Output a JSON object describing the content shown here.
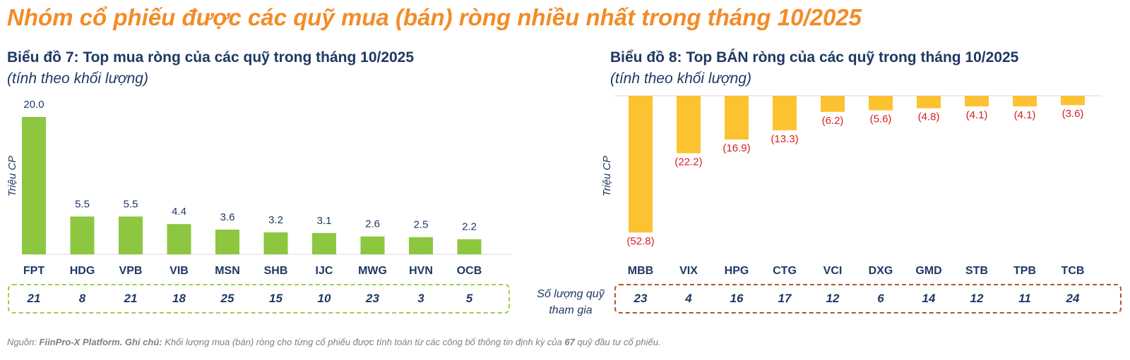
{
  "main_title": "Nhóm cổ phiếu được các quỹ mua (bán) ròng nhiều nhất trong tháng 10/2025",
  "charts": [
    {
      "title": "Biểu đồ 7: Top mua ròng của các quỹ trong tháng 10/2025",
      "subtitle_prefix": "(tính theo",
      "subtitle_em": "khối lượng)",
      "ylabel": "Triệu CP",
      "bar_color": "#8dc63f",
      "label_color": "#1f3864",
      "box_border_color": "#9bd14a",
      "counts": [
        "21",
        "8",
        "21",
        "18",
        "25",
        "15",
        "10",
        "23",
        "3",
        "5"
      ]
    },
    {
      "title": "Biểu đồ 8: Top BÁN ròng của các quỹ trong tháng 10/2025",
      "subtitle_prefix": "(tính theo",
      "subtitle_em": "khối lượng)",
      "ylabel": "Triệu CP",
      "bar_color": "#fcc232",
      "label_color": "#d81e1e",
      "box_border_color": "#b5532a",
      "counts": [
        "23",
        "4",
        "16",
        "17",
        "12",
        "6",
        "14",
        "12",
        "11",
        "24"
      ]
    }
  ],
  "count_label_line1": "Số lượng quỹ",
  "count_label_line2": "tham gia",
  "footnote": {
    "source_label": "Nguồn:",
    "source": "FiinPro-X Platform.",
    "note_label": "Ghi chú:",
    "note_pre": "Khối lượng mua (bán) ròng cho từng cổ phiếu được tính toán từ các công bố thông tin định kỳ của",
    "note_num": "67",
    "note_post": "quỹ đầu tư cổ phiếu."
  },
  "chart_data": [
    {
      "type": "bar",
      "title": "Biểu đồ 7: Top mua ròng của các quỹ trong tháng 10/2025",
      "ylabel": "Triệu CP",
      "categories": [
        "FPT",
        "HDG",
        "VPB",
        "VIB",
        "MSN",
        "SHB",
        "IJC",
        "MWG",
        "HVN",
        "OCB"
      ],
      "values": [
        20.0,
        5.5,
        5.5,
        4.4,
        3.6,
        3.2,
        3.1,
        2.6,
        2.5,
        2.2
      ],
      "value_labels": [
        "20.0",
        "5.5",
        "5.5",
        "4.4",
        "3.6",
        "3.2",
        "3.1",
        "2.6",
        "2.5",
        "2.2"
      ],
      "ylim": [
        0,
        20
      ],
      "grid": false
    },
    {
      "type": "bar",
      "title": "Biểu đồ 8: Top BÁN ròng của các quỹ trong tháng 10/2025",
      "ylabel": "Triệu CP",
      "categories": [
        "MBB",
        "VIX",
        "HPG",
        "CTG",
        "VCI",
        "DXG",
        "GMD",
        "STB",
        "TPB",
        "TCB"
      ],
      "values": [
        -52.8,
        -22.2,
        -16.9,
        -13.3,
        -6.2,
        -5.6,
        -4.8,
        -4.1,
        -4.1,
        -3.6
      ],
      "value_labels": [
        "(52.8)",
        "(22.2)",
        "(16.9)",
        "(13.3)",
        "(6.2)",
        "(5.6)",
        "(4.8)",
        "(4.1)",
        "(4.1)",
        "(3.6)"
      ],
      "ylim": [
        -52.8,
        0
      ],
      "grid": false
    }
  ]
}
